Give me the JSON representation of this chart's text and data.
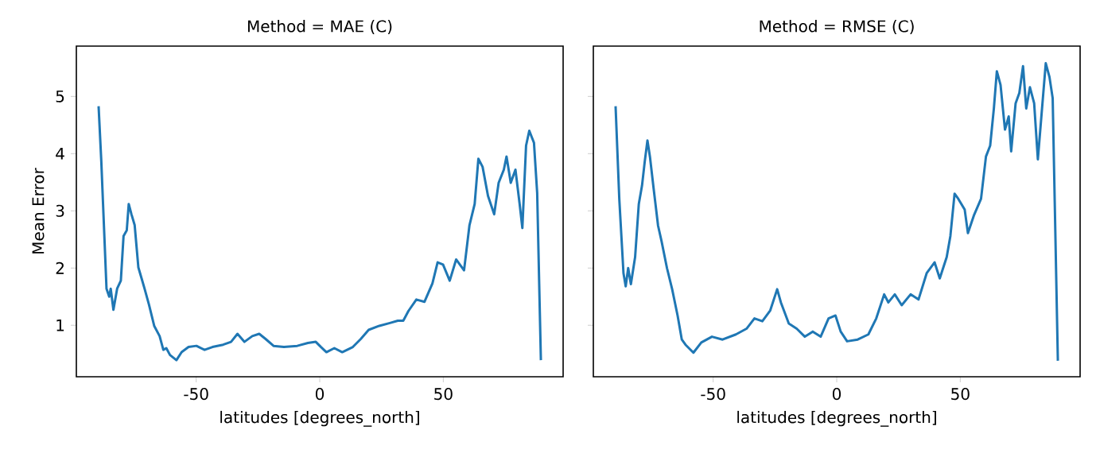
{
  "chart_data": [
    {
      "type": "line",
      "title": "Method = MAE (C)",
      "xlabel": "latitudes [degrees_north]",
      "ylabel": "Mean Error",
      "xlim": [
        -98.5,
        98.5
      ],
      "ylim": [
        0.1,
        5.88
      ],
      "xticks": [
        -50,
        0,
        50
      ],
      "yticks": [
        1,
        2,
        3,
        4,
        5
      ],
      "grid": false,
      "marker": "none",
      "line_style": "solid",
      "x": [
        -89.5,
        -88.4,
        -86.3,
        -85.2,
        -84.6,
        -83.5,
        -82.0,
        -80.5,
        -79.4,
        -78.1,
        -77.3,
        -76.2,
        -74.9,
        -73.4,
        -72.1,
        -70.9,
        -69.1,
        -67.0,
        -64.8,
        -63.3,
        -62.1,
        -60.6,
        -58.0,
        -55.9,
        -53.1,
        -49.9,
        -46.6,
        -43.4,
        -39.1,
        -35.9,
        -33.3,
        -30.5,
        -27.3,
        -24.5,
        -21.9,
        -18.7,
        -14.5,
        -9.1,
        -4.8,
        -1.6,
        0.5,
        2.7,
        5.9,
        9.1,
        13.4,
        16.6,
        19.8,
        24.1,
        28.4,
        31.6,
        33.8,
        35.9,
        39.1,
        42.4,
        45.6,
        47.7,
        49.9,
        52.6,
        55.2,
        58.4,
        60.6,
        62.7,
        64.2,
        65.9,
        68.1,
        70.6,
        72.4,
        74.5,
        75.6,
        77.3,
        79.2,
        80.9,
        82.0,
        83.5,
        84.8,
        86.7,
        88.0,
        89.5
      ],
      "series": [
        {
          "color": "#1f77b4",
          "values": [
            4.83,
            3.86,
            1.64,
            1.5,
            1.64,
            1.27,
            1.64,
            1.78,
            2.56,
            2.66,
            3.12,
            2.94,
            2.75,
            2.01,
            1.82,
            1.64,
            1.36,
            0.99,
            0.81,
            0.57,
            0.6,
            0.48,
            0.39,
            0.53,
            0.62,
            0.64,
            0.57,
            0.62,
            0.66,
            0.71,
            0.85,
            0.71,
            0.81,
            0.85,
            0.76,
            0.64,
            0.62,
            0.64,
            0.69,
            0.71,
            0.62,
            0.53,
            0.6,
            0.53,
            0.62,
            0.76,
            0.92,
            0.99,
            1.04,
            1.08,
            1.08,
            1.25,
            1.45,
            1.41,
            1.73,
            2.1,
            2.06,
            1.78,
            2.15,
            1.96,
            2.75,
            3.12,
            3.91,
            3.77,
            3.26,
            2.94,
            3.49,
            3.72,
            3.95,
            3.49,
            3.72,
            3.12,
            2.7,
            4.14,
            4.4,
            4.19,
            3.31,
            0.39
          ]
        }
      ]
    },
    {
      "type": "line",
      "title": "Method = RMSE (C)",
      "xlabel": "latitudes [degrees_north]",
      "xlim": [
        -98.5,
        98.5
      ],
      "ylim": [
        0.1,
        5.88
      ],
      "xticks": [
        -50,
        0,
        50
      ],
      "yticks": [
        1,
        2,
        3,
        4,
        5
      ],
      "tick_labels": "x",
      "grid": false,
      "marker": "none",
      "line_style": "solid",
      "x": [
        -89.5,
        -88.0,
        -86.3,
        -85.4,
        -84.4,
        -83.3,
        -81.6,
        -80.1,
        -78.8,
        -77.7,
        -76.6,
        -75.6,
        -74.1,
        -72.3,
        -70.9,
        -68.7,
        -66.6,
        -64.4,
        -62.7,
        -61.2,
        -58.0,
        -54.8,
        -50.5,
        -46.2,
        -40.8,
        -36.5,
        -33.3,
        -30.1,
        -26.9,
        -24.1,
        -22.6,
        -19.4,
        -16.2,
        -12.9,
        -9.7,
        -6.5,
        -3.3,
        -0.5,
        1.6,
        4.2,
        8.5,
        12.8,
        16.0,
        19.2,
        20.9,
        23.5,
        26.3,
        29.9,
        33.1,
        36.4,
        39.6,
        41.7,
        44.5,
        46.0,
        47.7,
        49.2,
        51.8,
        53.1,
        55.6,
        58.4,
        60.4,
        62.1,
        63.6,
        64.8,
        66.3,
        68.1,
        69.6,
        70.6,
        72.4,
        73.9,
        75.4,
        76.7,
        78.2,
        79.9,
        81.4,
        82.9,
        84.6,
        86.1,
        87.4,
        89.5
      ],
      "series": [
        {
          "color": "#1f77b4",
          "values": [
            4.83,
            3.21,
            1.91,
            1.68,
            2.0,
            1.72,
            2.19,
            3.12,
            3.44,
            3.86,
            4.23,
            3.95,
            3.39,
            2.74,
            2.47,
            2.0,
            1.63,
            1.17,
            0.75,
            0.66,
            0.52,
            0.7,
            0.8,
            0.75,
            0.84,
            0.94,
            1.12,
            1.07,
            1.26,
            1.63,
            1.4,
            1.03,
            0.94,
            0.8,
            0.89,
            0.8,
            1.12,
            1.17,
            0.89,
            0.72,
            0.75,
            0.84,
            1.12,
            1.54,
            1.4,
            1.54,
            1.35,
            1.54,
            1.45,
            1.91,
            2.1,
            1.82,
            2.19,
            2.56,
            3.3,
            3.21,
            3.02,
            2.61,
            2.93,
            3.21,
            3.95,
            4.14,
            4.79,
            5.44,
            5.2,
            4.42,
            4.65,
            4.04,
            4.88,
            5.06,
            5.53,
            4.79,
            5.16,
            4.88,
            3.9,
            4.69,
            5.58,
            5.34,
            4.97,
            0.38
          ]
        }
      ]
    }
  ]
}
